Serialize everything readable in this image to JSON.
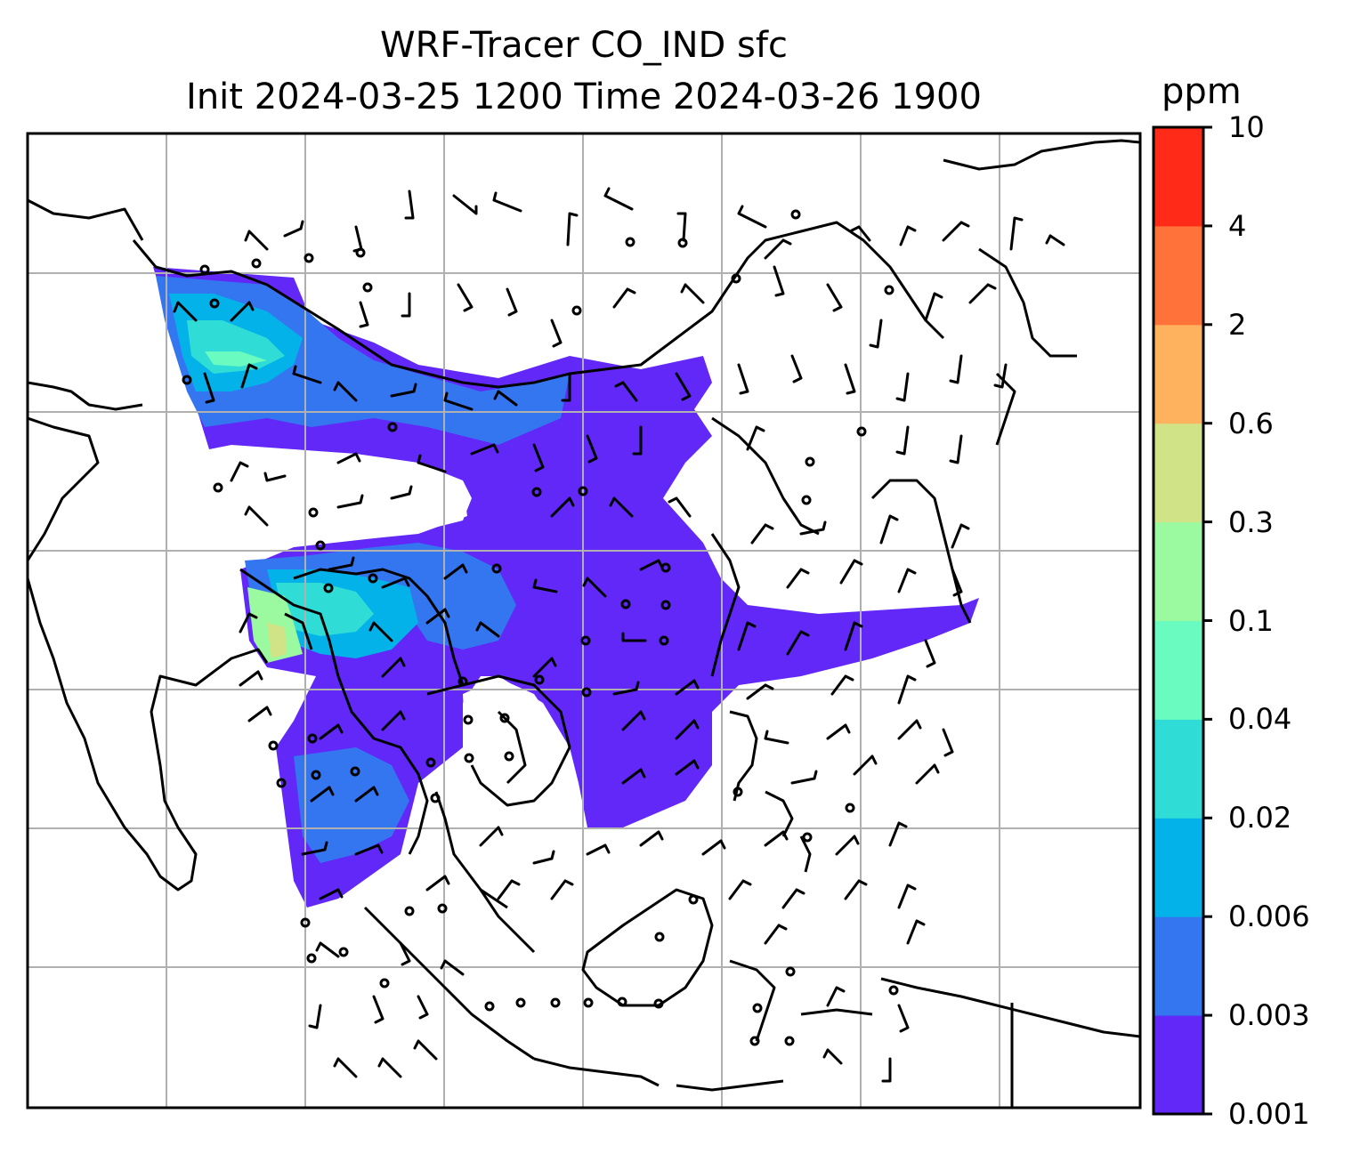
{
  "title": {
    "line1": "WRF-Tracer CO_IND sfc",
    "line2": "Init 2024-03-25 1200 Time 2024-03-26 1900"
  },
  "colorbar": {
    "units": "ppm",
    "ticks": [
      "0.001",
      "0.003",
      "0.006",
      "0.02",
      "0.04",
      "0.1",
      "0.3",
      "0.6",
      "2",
      "4",
      "10"
    ],
    "colors": [
      "#6128f8",
      "#3475f0",
      "#04b2ea",
      "#2fdcd6",
      "#6afbc0",
      "#9bf99f",
      "#d0e386",
      "#ffb25d",
      "#ff733b",
      "#ff2a17"
    ]
  },
  "map": {
    "projection": "regional (South / Southeast / East Asia)",
    "gridlines": true,
    "overlay": "wind barbs"
  }
}
